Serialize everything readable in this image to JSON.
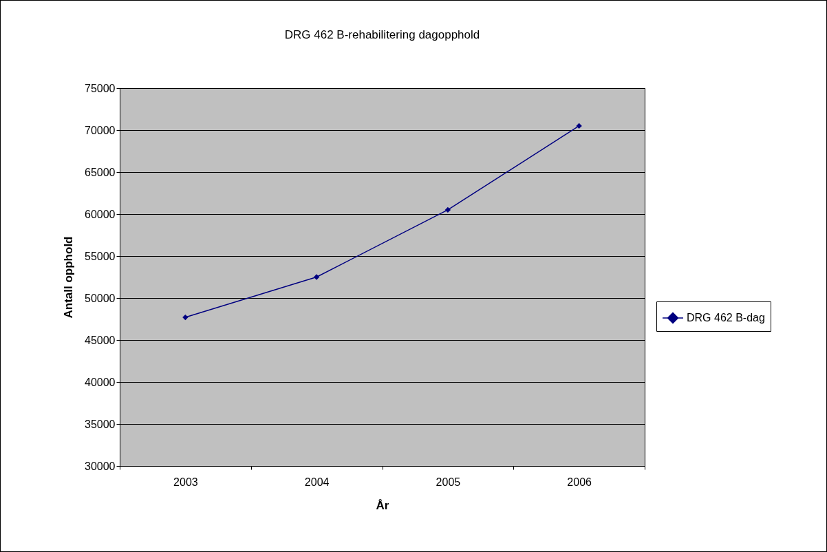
{
  "chart_data": {
    "type": "line",
    "title": "DRG 462 B-rehabilitering dagopphold",
    "xlabel": "År",
    "ylabel": "Antall opphold",
    "categories": [
      "2003",
      "2004",
      "2005",
      "2006"
    ],
    "series": [
      {
        "name": "DRG 462 B-dag",
        "color": "#000080",
        "values": [
          47700,
          52500,
          60500,
          70500
        ]
      }
    ],
    "ylim": [
      30000,
      75000
    ],
    "yticks": [
      30000,
      35000,
      40000,
      45000,
      50000,
      55000,
      60000,
      65000,
      70000,
      75000
    ],
    "grid": "y",
    "legend": "right",
    "marker": "diamond",
    "line_style": "solid"
  }
}
